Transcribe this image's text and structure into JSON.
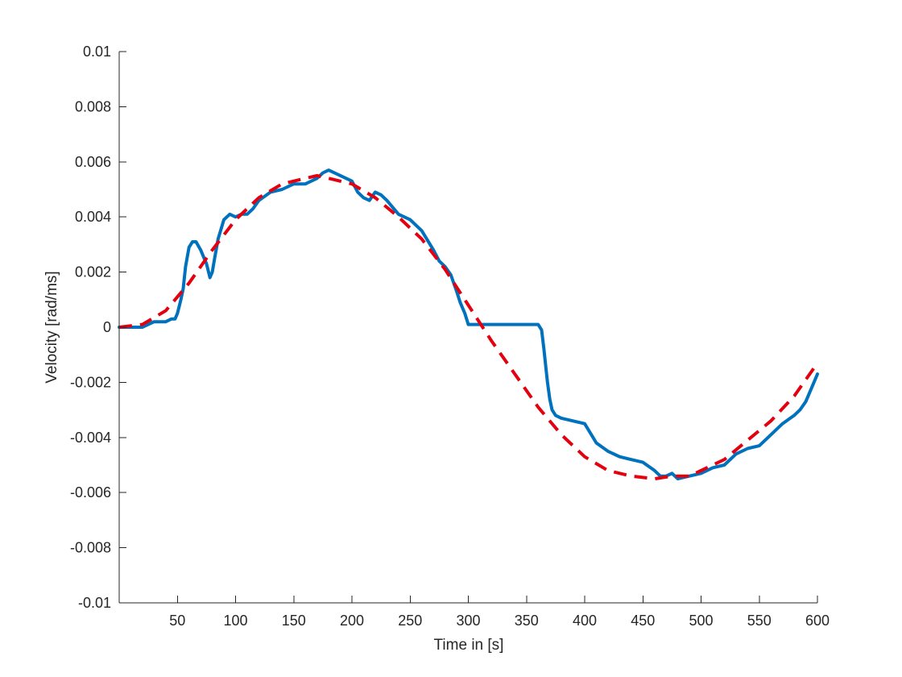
{
  "chart_data": {
    "type": "line",
    "title": "",
    "xlabel": "Time in [s]",
    "ylabel": "Velocity [rad/ms]",
    "xlim": [
      0,
      600
    ],
    "ylim": [
      -0.01,
      0.01
    ],
    "x_ticks": [
      50,
      100,
      150,
      200,
      250,
      300,
      350,
      400,
      450,
      500,
      550,
      600
    ],
    "x_tick_labels": [
      "50",
      "100",
      "150",
      "200",
      "250",
      "300",
      "350",
      "400",
      "450",
      "500",
      "550",
      "600"
    ],
    "y_ticks": [
      -0.01,
      -0.008,
      -0.006,
      -0.004,
      -0.002,
      0,
      0.002,
      0.004,
      0.006,
      0.008,
      0.01
    ],
    "y_tick_labels": [
      "-0.01",
      "-0.008",
      "-0.006",
      "-0.004",
      "-0.002",
      "0",
      "0.002",
      "0.004",
      "0.006",
      "0.008",
      "0.01"
    ],
    "grid": false,
    "legend": "none",
    "colors": {
      "measured": "#0072BD",
      "fit": "#E3000F",
      "axis": "#262626"
    },
    "series": [
      {
        "style": "solid",
        "x": [
          0,
          10,
          20,
          25,
          30,
          35,
          40,
          45,
          48,
          50,
          53,
          55,
          57,
          60,
          63,
          66,
          70,
          75,
          78,
          80,
          82,
          85,
          90,
          95,
          100,
          105,
          110,
          115,
          120,
          130,
          140,
          150,
          160,
          170,
          175,
          180,
          190,
          200,
          205,
          210,
          215,
          220,
          225,
          230,
          240,
          250,
          260,
          270,
          275,
          280,
          285,
          290,
          293,
          297,
          300,
          303,
          305,
          310,
          320,
          330,
          340,
          350,
          355,
          360,
          363,
          365,
          367,
          368,
          370,
          372,
          375,
          380,
          390,
          400,
          410,
          420,
          430,
          440,
          450,
          460,
          465,
          470,
          475,
          480,
          490,
          500,
          510,
          520,
          530,
          540,
          550,
          560,
          570,
          580,
          585,
          590,
          595,
          600
        ],
        "y": [
          0.0,
          0.0,
          0.0,
          0.0001,
          0.0002,
          0.0002,
          0.0002,
          0.0003,
          0.0003,
          0.0005,
          0.001,
          0.0014,
          0.0022,
          0.0029,
          0.0031,
          0.0031,
          0.0028,
          0.0023,
          0.0018,
          0.002,
          0.0025,
          0.0032,
          0.0039,
          0.0041,
          0.004,
          0.0041,
          0.0041,
          0.0043,
          0.0046,
          0.0049,
          0.005,
          0.0052,
          0.0052,
          0.0054,
          0.0056,
          0.0057,
          0.0055,
          0.0053,
          0.0049,
          0.0047,
          0.0046,
          0.0049,
          0.0048,
          0.0046,
          0.0041,
          0.0039,
          0.0035,
          0.0028,
          0.0024,
          0.0022,
          0.0019,
          0.0013,
          0.0009,
          0.0005,
          0.0001,
          0.0001,
          0.0001,
          0.0001,
          0.0001,
          0.0001,
          0.0001,
          0.0001,
          0.0001,
          0.0001,
          -0.0001,
          -0.0008,
          -0.0016,
          -0.002,
          -0.0026,
          -0.003,
          -0.0032,
          -0.0033,
          -0.0034,
          -0.0035,
          -0.0042,
          -0.0045,
          -0.0047,
          -0.0048,
          -0.0049,
          -0.0052,
          -0.0054,
          -0.0054,
          -0.0053,
          -0.0055,
          -0.0054,
          -0.0053,
          -0.0051,
          -0.005,
          -0.0046,
          -0.0044,
          -0.0043,
          -0.0039,
          -0.0035,
          -0.0032,
          -0.003,
          -0.0027,
          -0.0022,
          -0.0017
        ]
      },
      {
        "style": "dashed",
        "x": [
          0,
          20,
          40,
          60,
          80,
          100,
          120,
          140,
          160,
          170,
          180,
          200,
          220,
          240,
          260,
          280,
          300,
          320,
          340,
          360,
          380,
          400,
          420,
          440,
          460,
          475,
          490,
          500,
          520,
          540,
          560,
          580,
          600
        ],
        "y": [
          0.0,
          0.0001,
          0.0006,
          0.0016,
          0.0028,
          0.0039,
          0.0047,
          0.0052,
          0.0054,
          0.0055,
          0.0054,
          0.0052,
          0.0047,
          0.004,
          0.0032,
          0.0021,
          0.0008,
          -0.0005,
          -0.0017,
          -0.0029,
          -0.0039,
          -0.0047,
          -0.0052,
          -0.0054,
          -0.0055,
          -0.0054,
          -0.0054,
          -0.0052,
          -0.0048,
          -0.0041,
          -0.0034,
          -0.0025,
          -0.0013
        ]
      }
    ]
  }
}
